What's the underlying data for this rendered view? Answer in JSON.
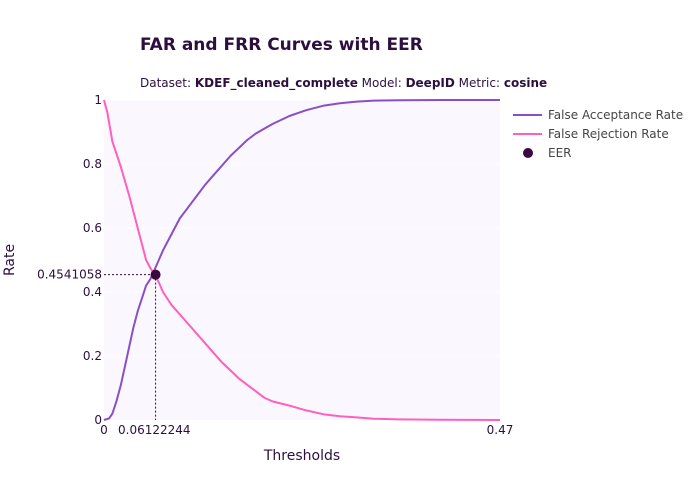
{
  "chart_data": {
    "type": "line",
    "title": "FAR and FRR Curves with EER",
    "subtitle": {
      "dataset_label": "Dataset:",
      "dataset": "KDEF_cleaned_complete",
      "model_label": "Model:",
      "model": "DeepID",
      "metric_label": "Metric:",
      "metric": "cosine"
    },
    "xlabel": "Thresholds",
    "ylabel": "Rate",
    "xlim": [
      0,
      0.47
    ],
    "ylim": [
      0,
      1
    ],
    "x_ticks": [
      "0",
      "0.06122244",
      "0.47"
    ],
    "x_tick_values": [
      0,
      0.06122244,
      0.47
    ],
    "y_ticks": [
      "0",
      "0.2",
      "0.4",
      "0.6",
      "0.8",
      "1"
    ],
    "y_tick_values": [
      0,
      0.2,
      0.4,
      0.6,
      0.8,
      1
    ],
    "legend_position": "right",
    "series": [
      {
        "name": "False Acceptance Rate",
        "color": "#8950c6",
        "x": [
          0,
          0.006,
          0.01,
          0.015,
          0.02,
          0.025,
          0.03,
          0.035,
          0.04,
          0.045,
          0.05,
          0.055,
          0.06,
          0.065,
          0.07,
          0.08,
          0.09,
          0.1,
          0.11,
          0.12,
          0.13,
          0.14,
          0.15,
          0.16,
          0.17,
          0.18,
          0.19,
          0.2,
          0.22,
          0.24,
          0.26,
          0.28,
          0.3,
          0.32,
          0.35,
          0.4,
          0.47
        ],
        "y": [
          0,
          0.005,
          0.02,
          0.06,
          0.11,
          0.17,
          0.23,
          0.29,
          0.34,
          0.38,
          0.42,
          0.44,
          0.47,
          0.5,
          0.53,
          0.58,
          0.63,
          0.665,
          0.7,
          0.735,
          0.765,
          0.795,
          0.825,
          0.85,
          0.875,
          0.895,
          0.91,
          0.925,
          0.95,
          0.968,
          0.982,
          0.99,
          0.995,
          0.998,
          0.999,
          1.0,
          1.0
        ]
      },
      {
        "name": "False Rejection Rate",
        "color": "#ff5fbd",
        "x": [
          0,
          0.004,
          0.01,
          0.02,
          0.03,
          0.04,
          0.05,
          0.055,
          0.06,
          0.065,
          0.07,
          0.08,
          0.09,
          0.1,
          0.11,
          0.12,
          0.13,
          0.14,
          0.15,
          0.16,
          0.17,
          0.18,
          0.19,
          0.2,
          0.22,
          0.24,
          0.26,
          0.28,
          0.3,
          0.32,
          0.35,
          0.4,
          0.47
        ],
        "y": [
          1.0,
          0.96,
          0.87,
          0.79,
          0.7,
          0.6,
          0.5,
          0.475,
          0.455,
          0.43,
          0.4,
          0.36,
          0.33,
          0.3,
          0.27,
          0.24,
          0.21,
          0.18,
          0.155,
          0.13,
          0.11,
          0.09,
          0.07,
          0.058,
          0.045,
          0.03,
          0.018,
          0.012,
          0.008,
          0.004,
          0.002,
          0.001,
          0.0
        ]
      }
    ],
    "eer": {
      "name": "EER",
      "x": 0.06122244,
      "y": 0.4541058,
      "label": "0.4541058",
      "color": "#3a0840"
    },
    "background_color": "#fbf7ff"
  }
}
